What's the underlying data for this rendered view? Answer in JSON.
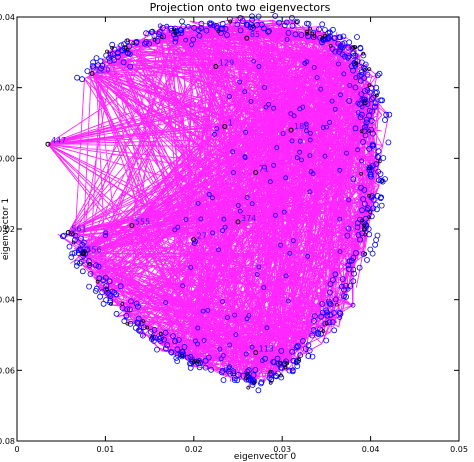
{
  "chart_data": {
    "type": "scatter",
    "title": "Projection onto two eigenvectors",
    "xlabel": "eigenvector 0",
    "ylabel": "eigenvector 1",
    "xlim": [
      0,
      0.05
    ],
    "ylim": [
      -0.08,
      0.04
    ],
    "x_ticks": [
      0,
      0.01,
      0.02,
      0.03,
      0.04,
      0.05
    ],
    "y_ticks": [
      -0.08,
      -0.06,
      -0.04,
      -0.02,
      0.0,
      0.02,
      0.04
    ],
    "x_tick_labels": [
      "0",
      "0.01",
      "0.02",
      "0.03",
      "0.04",
      "0.05"
    ],
    "y_tick_labels": [
      "-0.08",
      "-0.06",
      "-0.04",
      "-0.02",
      "0.00",
      "0.02",
      "0.04"
    ],
    "grid": false,
    "colors": {
      "edges": "#ff00ff",
      "points": "#0000ff",
      "markers": "#000000",
      "labels": "#1a1aff"
    },
    "labeled_points": [
      {
        "label": "447",
        "x": 0.0035,
        "y": 0.004
      },
      {
        "label": "120",
        "x": 0.0085,
        "y": 0.024
      },
      {
        "label": "561",
        "x": 0.0058,
        "y": -0.021
      },
      {
        "label": "556",
        "x": 0.0075,
        "y": -0.027
      },
      {
        "label": "555",
        "x": 0.013,
        "y": -0.019
      },
      {
        "label": "129",
        "x": 0.0225,
        "y": 0.026
      },
      {
        "label": "85",
        "x": 0.026,
        "y": 0.034
      },
      {
        "label": "71",
        "x": 0.027,
        "y": -0.004
      },
      {
        "label": "374",
        "x": 0.025,
        "y": -0.018
      },
      {
        "label": "27",
        "x": 0.02,
        "y": -0.023
      },
      {
        "label": "188",
        "x": 0.031,
        "y": 0.008
      },
      {
        "label": "113",
        "x": 0.027,
        "y": -0.055
      },
      {
        "label": "1",
        "x": 0.0235,
        "y": 0.009
      }
    ]
  }
}
